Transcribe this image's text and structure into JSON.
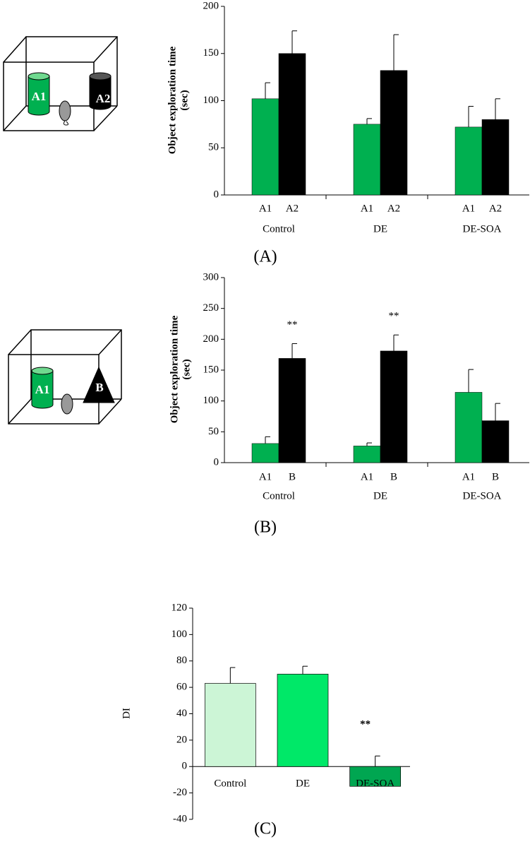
{
  "panels": [
    {
      "label": "(A)",
      "illustration": [
        "A1",
        "A2"
      ]
    },
    {
      "label": "(B)",
      "illustration": [
        "A1",
        "B"
      ]
    },
    {
      "label": "(C)"
    }
  ],
  "chart_data": [
    {
      "type": "bar",
      "ylabel": [
        "Object exploration time",
        "(sec)"
      ],
      "categories": [
        "Control",
        "DE",
        "DE-SOA"
      ],
      "series": [
        {
          "name": "A1",
          "color": "#00b050",
          "values": [
            102,
            75,
            72
          ],
          "errors": [
            17,
            6,
            22
          ]
        },
        {
          "name": "A2",
          "color": "#000000",
          "values": [
            150,
            132,
            80
          ],
          "errors": [
            24,
            38,
            22
          ]
        }
      ],
      "ylim": [
        0,
        200
      ],
      "yticks": [
        0,
        50,
        100,
        150,
        200
      ]
    },
    {
      "type": "bar",
      "ylabel": [
        "Object exploration time",
        "(sec)"
      ],
      "categories": [
        "Control",
        "DE",
        "DE-SOA"
      ],
      "series": [
        {
          "name": "A1",
          "color": "#00b050",
          "values": [
            31,
            27,
            114
          ],
          "errors": [
            11,
            5,
            37
          ]
        },
        {
          "name": "B",
          "color": "#000000",
          "values": [
            169,
            181,
            68
          ],
          "errors": [
            24,
            26,
            28
          ],
          "annotations": [
            "**",
            "**",
            null
          ]
        }
      ],
      "ylim": [
        0,
        300
      ],
      "yticks": [
        0,
        50,
        100,
        150,
        200,
        250,
        300
      ]
    },
    {
      "type": "bar",
      "ylabel": "DI",
      "categories": [
        "Control",
        "DE",
        "DE-SOA"
      ],
      "values": [
        63,
        70,
        -15
      ],
      "errors": [
        12,
        6,
        23
      ],
      "colors": [
        "#ccf5d6",
        "#00e868",
        "#00a651"
      ],
      "annotations": [
        null,
        null,
        "**"
      ],
      "ylim": [
        -40,
        120
      ],
      "yticks": [
        -40,
        -20,
        0,
        20,
        40,
        60,
        80,
        100,
        120
      ]
    }
  ]
}
